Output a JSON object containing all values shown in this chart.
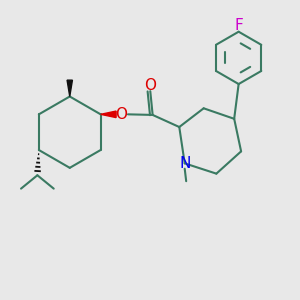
{
  "bg_color": "#e8e8e8",
  "bond_color": "#3a7a62",
  "n_color": "#0000ee",
  "o_color": "#dd0000",
  "f_color": "#cc00cc",
  "black": "#111111",
  "line_width": 1.5,
  "figsize": [
    3.0,
    3.0
  ],
  "dpi": 100,
  "xlim": [
    0,
    10
  ],
  "ylim": [
    0,
    10
  ]
}
